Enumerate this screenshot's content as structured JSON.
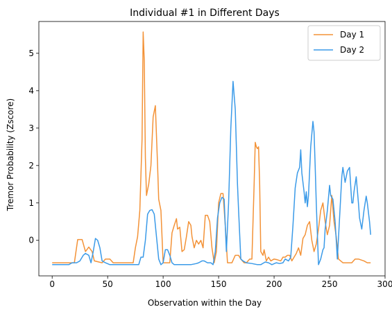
{
  "chart_data": {
    "type": "line",
    "title": "Individual #1 in Different Days",
    "xlabel": "Observation within the Day",
    "ylabel": "Tremor Probability (Zscore)",
    "xlim": [
      -12,
      300
    ],
    "ylim": [
      -0.95,
      5.85
    ],
    "xticks": [
      0,
      50,
      100,
      150,
      200,
      250,
      300
    ],
    "yticks": [
      0,
      1,
      2,
      3,
      4,
      5
    ],
    "grid": false,
    "legend_position": "top-right",
    "series": [
      {
        "name": "Day 1",
        "color": "#F39237",
        "points": [
          [
            0,
            -0.6
          ],
          [
            10,
            -0.6
          ],
          [
            20,
            -0.6
          ],
          [
            23,
            0.02
          ],
          [
            27,
            0.02
          ],
          [
            30,
            -0.3
          ],
          [
            33,
            -0.18
          ],
          [
            36,
            -0.3
          ],
          [
            38,
            -0.55
          ],
          [
            45,
            -0.6
          ],
          [
            48,
            -0.5
          ],
          [
            52,
            -0.5
          ],
          [
            55,
            -0.6
          ],
          [
            60,
            -0.6
          ],
          [
            65,
            -0.6
          ],
          [
            70,
            -0.6
          ],
          [
            73,
            -0.6
          ],
          [
            75,
            -0.2
          ],
          [
            77,
            0.1
          ],
          [
            79,
            0.8
          ],
          [
            81,
            2.7
          ],
          [
            82,
            5.57
          ],
          [
            83,
            4.8
          ],
          [
            84,
            2.2
          ],
          [
            85,
            1.2
          ],
          [
            87,
            1.5
          ],
          [
            89,
            2.0
          ],
          [
            91,
            3.3
          ],
          [
            93,
            3.6
          ],
          [
            95,
            2.0
          ],
          [
            96,
            1.1
          ],
          [
            98,
            0.8
          ],
          [
            100,
            -0.6
          ],
          [
            103,
            -0.6
          ],
          [
            106,
            -0.6
          ],
          [
            108,
            0.2
          ],
          [
            110,
            0.4
          ],
          [
            112,
            0.58
          ],
          [
            113,
            0.3
          ],
          [
            115,
            0.35
          ],
          [
            117,
            -0.3
          ],
          [
            119,
            -0.25
          ],
          [
            121,
            0.1
          ],
          [
            123,
            0.5
          ],
          [
            125,
            0.4
          ],
          [
            126,
            0.1
          ],
          [
            128,
            -0.2
          ],
          [
            130,
            0.0
          ],
          [
            132,
            -0.1
          ],
          [
            134,
            0.0
          ],
          [
            136,
            -0.2
          ],
          [
            138,
            0.67
          ],
          [
            140,
            0.67
          ],
          [
            142,
            0.5
          ],
          [
            144,
            -0.2
          ],
          [
            146,
            -0.6
          ],
          [
            148,
            -0.3
          ],
          [
            150,
            1.0
          ],
          [
            152,
            1.25
          ],
          [
            154,
            1.25
          ],
          [
            156,
            0.4
          ],
          [
            158,
            -0.6
          ],
          [
            160,
            -0.6
          ],
          [
            162,
            -0.6
          ],
          [
            165,
            -0.4
          ],
          [
            168,
            -0.4
          ],
          [
            170,
            -0.5
          ],
          [
            173,
            -0.6
          ],
          [
            175,
            -0.6
          ],
          [
            178,
            -0.5
          ],
          [
            180,
            -0.5
          ],
          [
            182,
            1.5
          ],
          [
            183,
            2.62
          ],
          [
            184,
            2.5
          ],
          [
            185,
            2.45
          ],
          [
            186,
            2.5
          ],
          [
            187,
            1.5
          ],
          [
            188,
            -0.3
          ],
          [
            190,
            -0.4
          ],
          [
            191,
            -0.25
          ],
          [
            193,
            -0.55
          ],
          [
            195,
            -0.45
          ],
          [
            197,
            -0.55
          ],
          [
            200,
            -0.5
          ],
          [
            203,
            -0.52
          ],
          [
            206,
            -0.55
          ],
          [
            208,
            -0.45
          ],
          [
            210,
            -0.45
          ],
          [
            212,
            -0.4
          ],
          [
            214,
            -0.4
          ],
          [
            216,
            -0.55
          ],
          [
            218,
            -0.45
          ],
          [
            220,
            -0.35
          ],
          [
            222,
            -0.2
          ],
          [
            224,
            -0.4
          ],
          [
            226,
            0.05
          ],
          [
            228,
            0.15
          ],
          [
            230,
            0.4
          ],
          [
            232,
            0.5
          ],
          [
            234,
            0.0
          ],
          [
            236,
            -0.3
          ],
          [
            238,
            -0.1
          ],
          [
            240,
            0.3
          ],
          [
            242,
            0.8
          ],
          [
            244,
            1.0
          ],
          [
            246,
            0.5
          ],
          [
            248,
            0.15
          ],
          [
            250,
            0.4
          ],
          [
            252,
            1.2
          ],
          [
            254,
            0.5
          ],
          [
            256,
            0.1
          ],
          [
            258,
            -0.5
          ],
          [
            262,
            -0.6
          ],
          [
            265,
            -0.6
          ],
          [
            270,
            -0.6
          ],
          [
            273,
            -0.5
          ],
          [
            276,
            -0.5
          ],
          [
            278,
            -0.52
          ],
          [
            281,
            -0.55
          ],
          [
            284,
            -0.6
          ],
          [
            287,
            -0.6
          ]
        ]
      },
      {
        "name": "Day 2",
        "color": "#3A9AE8",
        "points": [
          [
            0,
            -0.65
          ],
          [
            5,
            -0.65
          ],
          [
            10,
            -0.65
          ],
          [
            15,
            -0.65
          ],
          [
            18,
            -0.6
          ],
          [
            22,
            -0.6
          ],
          [
            25,
            -0.55
          ],
          [
            28,
            -0.4
          ],
          [
            30,
            -0.35
          ],
          [
            33,
            -0.4
          ],
          [
            35,
            -0.6
          ],
          [
            37,
            -0.3
          ],
          [
            39,
            0.05
          ],
          [
            41,
            0.0
          ],
          [
            43,
            -0.2
          ],
          [
            45,
            -0.55
          ],
          [
            48,
            -0.6
          ],
          [
            52,
            -0.65
          ],
          [
            60,
            -0.65
          ],
          [
            70,
            -0.65
          ],
          [
            75,
            -0.65
          ],
          [
            78,
            -0.65
          ],
          [
            80,
            -0.45
          ],
          [
            82,
            -0.45
          ],
          [
            84,
            0.0
          ],
          [
            86,
            0.7
          ],
          [
            88,
            0.8
          ],
          [
            90,
            0.82
          ],
          [
            92,
            0.7
          ],
          [
            94,
            0.1
          ],
          [
            96,
            -0.5
          ],
          [
            98,
            -0.65
          ],
          [
            100,
            -0.6
          ],
          [
            102,
            -0.25
          ],
          [
            104,
            -0.25
          ],
          [
            106,
            -0.4
          ],
          [
            108,
            -0.6
          ],
          [
            110,
            -0.65
          ],
          [
            115,
            -0.65
          ],
          [
            120,
            -0.65
          ],
          [
            125,
            -0.65
          ],
          [
            130,
            -0.62
          ],
          [
            132,
            -0.6
          ],
          [
            135,
            -0.55
          ],
          [
            137,
            -0.55
          ],
          [
            140,
            -0.6
          ],
          [
            143,
            -0.6
          ],
          [
            145,
            -0.65
          ],
          [
            147,
            -0.3
          ],
          [
            149,
            0.6
          ],
          [
            151,
            1.0
          ],
          [
            153,
            1.15
          ],
          [
            155,
            1.1
          ],
          [
            157,
            -0.3
          ],
          [
            159,
            1.0
          ],
          [
            161,
            3.0
          ],
          [
            163,
            4.25
          ],
          [
            165,
            3.5
          ],
          [
            167,
            1.5
          ],
          [
            168,
            0.8
          ],
          [
            170,
            -0.5
          ],
          [
            172,
            -0.55
          ],
          [
            175,
            -0.6
          ],
          [
            180,
            -0.62
          ],
          [
            185,
            -0.65
          ],
          [
            188,
            -0.65
          ],
          [
            192,
            -0.58
          ],
          [
            195,
            -0.6
          ],
          [
            198,
            -0.65
          ],
          [
            202,
            -0.6
          ],
          [
            205,
            -0.62
          ],
          [
            208,
            -0.6
          ],
          [
            210,
            -0.5
          ],
          [
            213,
            -0.55
          ],
          [
            215,
            -0.45
          ],
          [
            217,
            0.4
          ],
          [
            219,
            1.4
          ],
          [
            221,
            1.8
          ],
          [
            223,
            1.95
          ],
          [
            224,
            2.42
          ],
          [
            225,
            1.8
          ],
          [
            227,
            1.3
          ],
          [
            228,
            1.0
          ],
          [
            229,
            1.3
          ],
          [
            230,
            0.9
          ],
          [
            231,
            1.2
          ],
          [
            233,
            2.5
          ],
          [
            235,
            3.18
          ],
          [
            236,
            2.9
          ],
          [
            237,
            2.0
          ],
          [
            238,
            1.0
          ],
          [
            240,
            -0.65
          ],
          [
            242,
            -0.5
          ],
          [
            244,
            -0.25
          ],
          [
            245,
            -0.2
          ],
          [
            246,
            0.3
          ],
          [
            248,
            0.8
          ],
          [
            250,
            1.47
          ],
          [
            251,
            1.2
          ],
          [
            253,
            1.1
          ],
          [
            255,
            0.5
          ],
          [
            257,
            -0.5
          ],
          [
            259,
            0.6
          ],
          [
            261,
            1.7
          ],
          [
            262,
            1.95
          ],
          [
            264,
            1.55
          ],
          [
            266,
            1.85
          ],
          [
            268,
            1.95
          ],
          [
            270,
            1.0
          ],
          [
            271,
            1.0
          ],
          [
            272,
            1.3
          ],
          [
            274,
            1.7
          ],
          [
            276,
            1.0
          ],
          [
            277,
            0.6
          ],
          [
            279,
            0.3
          ],
          [
            281,
            0.8
          ],
          [
            283,
            1.18
          ],
          [
            284,
            1.0
          ],
          [
            286,
            0.5
          ],
          [
            287,
            0.15
          ]
        ]
      }
    ]
  }
}
